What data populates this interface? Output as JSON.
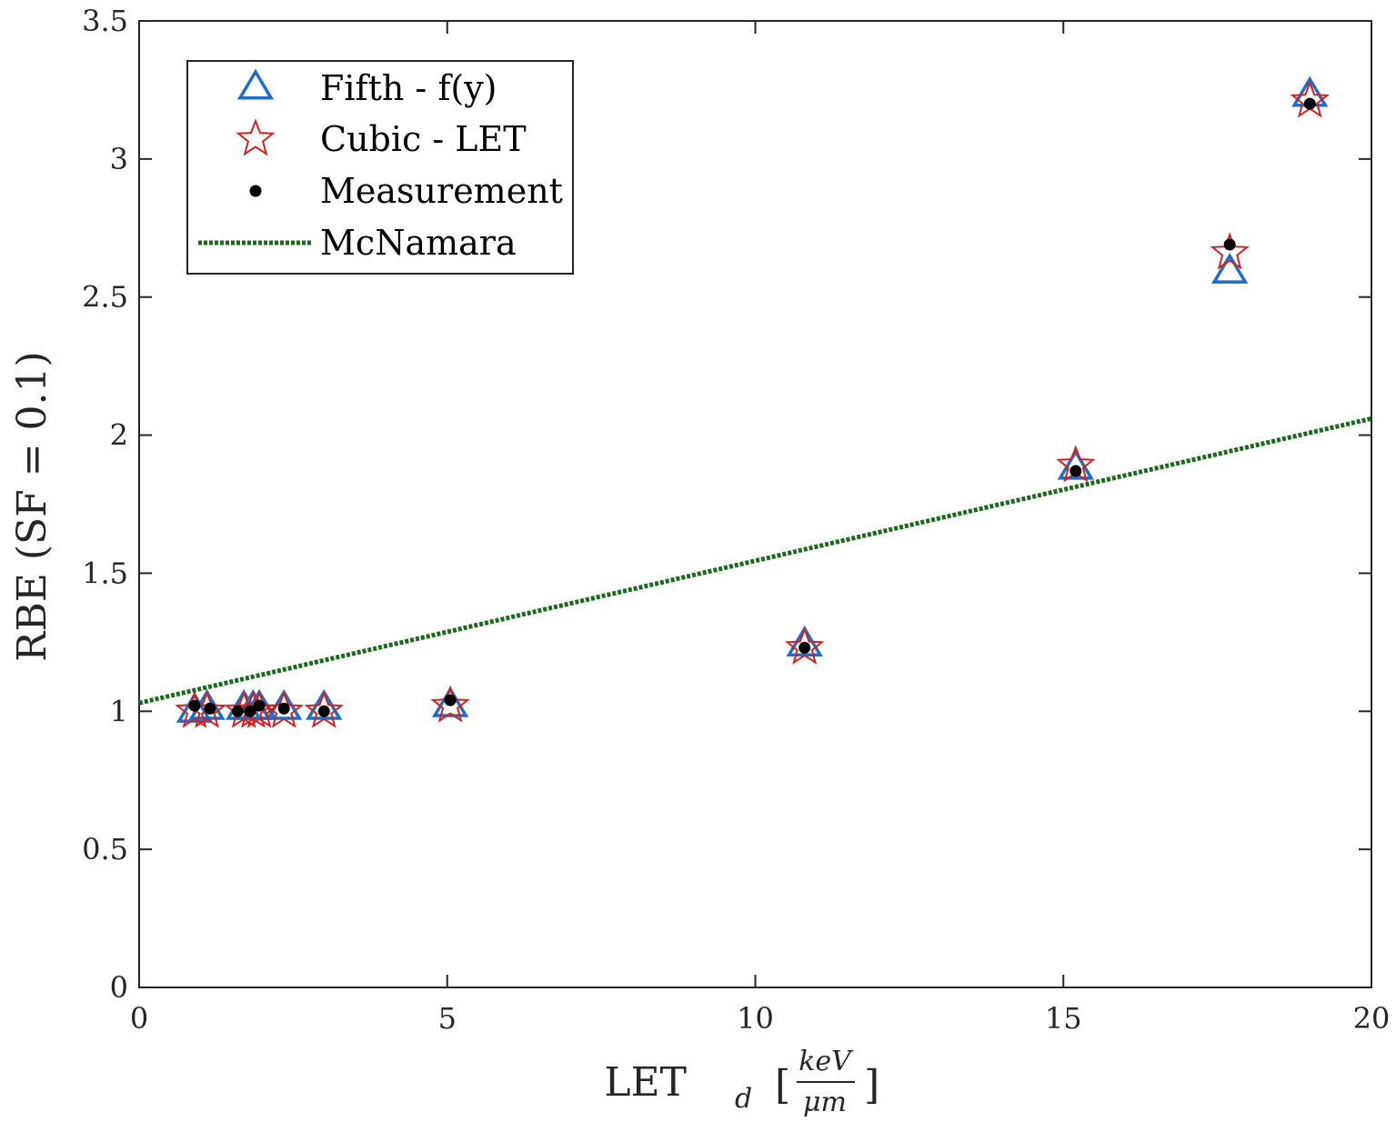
{
  "chart_data": {
    "type": "scatter",
    "xlabel": {
      "main": "LET",
      "subscript": "d",
      "bracket_open": "[",
      "bracket_close": "]",
      "fraction_top": "keV",
      "fraction_bottom": "μm"
    },
    "ylabel": "RBE (SF = 0.1)",
    "xlim": [
      0,
      20
    ],
    "ylim": [
      0,
      3.5
    ],
    "xticks": [
      "0",
      "5",
      "10",
      "15",
      "20"
    ],
    "yticks": [
      "0",
      "0.5",
      "1",
      "1.5",
      "2",
      "2.5",
      "3",
      "3.5"
    ],
    "grid": false,
    "legend_position": "top-left",
    "series": [
      {
        "name": "Fifth - f(y)",
        "marker": "triangle",
        "color": "#1f6fc8",
        "points": [
          [
            0.9,
            1.0
          ],
          [
            1.1,
            1.01
          ],
          [
            1.7,
            1.01
          ],
          [
            1.85,
            1.01
          ],
          [
            1.95,
            1.01
          ],
          [
            2.35,
            1.01
          ],
          [
            3.0,
            1.01
          ],
          [
            5.05,
            1.02
          ],
          [
            10.8,
            1.24
          ],
          [
            15.2,
            1.88
          ],
          [
            17.7,
            2.59
          ],
          [
            19.0,
            3.23
          ]
        ]
      },
      {
        "name": "Cubic - LET",
        "marker": "star",
        "color": "#d62020",
        "points": [
          [
            0.9,
            1.0
          ],
          [
            1.1,
            1.0
          ],
          [
            1.7,
            1.0
          ],
          [
            1.85,
            1.0
          ],
          [
            1.95,
            1.0
          ],
          [
            2.35,
            1.0
          ],
          [
            3.0,
            1.0
          ],
          [
            5.05,
            1.02
          ],
          [
            10.8,
            1.23
          ],
          [
            15.2,
            1.89
          ],
          [
            17.7,
            2.66
          ],
          [
            19.0,
            3.21
          ]
        ]
      },
      {
        "name": "Measurement",
        "marker": "dot",
        "color": "#000000",
        "points": [
          [
            0.9,
            1.02
          ],
          [
            1.15,
            1.01
          ],
          [
            1.6,
            1.0
          ],
          [
            1.8,
            1.0
          ],
          [
            1.95,
            1.02
          ],
          [
            2.35,
            1.01
          ],
          [
            3.0,
            1.0
          ],
          [
            5.05,
            1.04
          ],
          [
            10.8,
            1.23
          ],
          [
            15.2,
            1.87
          ],
          [
            17.7,
            2.69
          ],
          [
            19.0,
            3.2
          ]
        ]
      },
      {
        "name": "McNamara",
        "marker": "dotted-line",
        "color": "#1a6b1a",
        "points": [
          [
            0,
            1.03
          ],
          [
            20,
            2.06
          ]
        ]
      }
    ]
  }
}
